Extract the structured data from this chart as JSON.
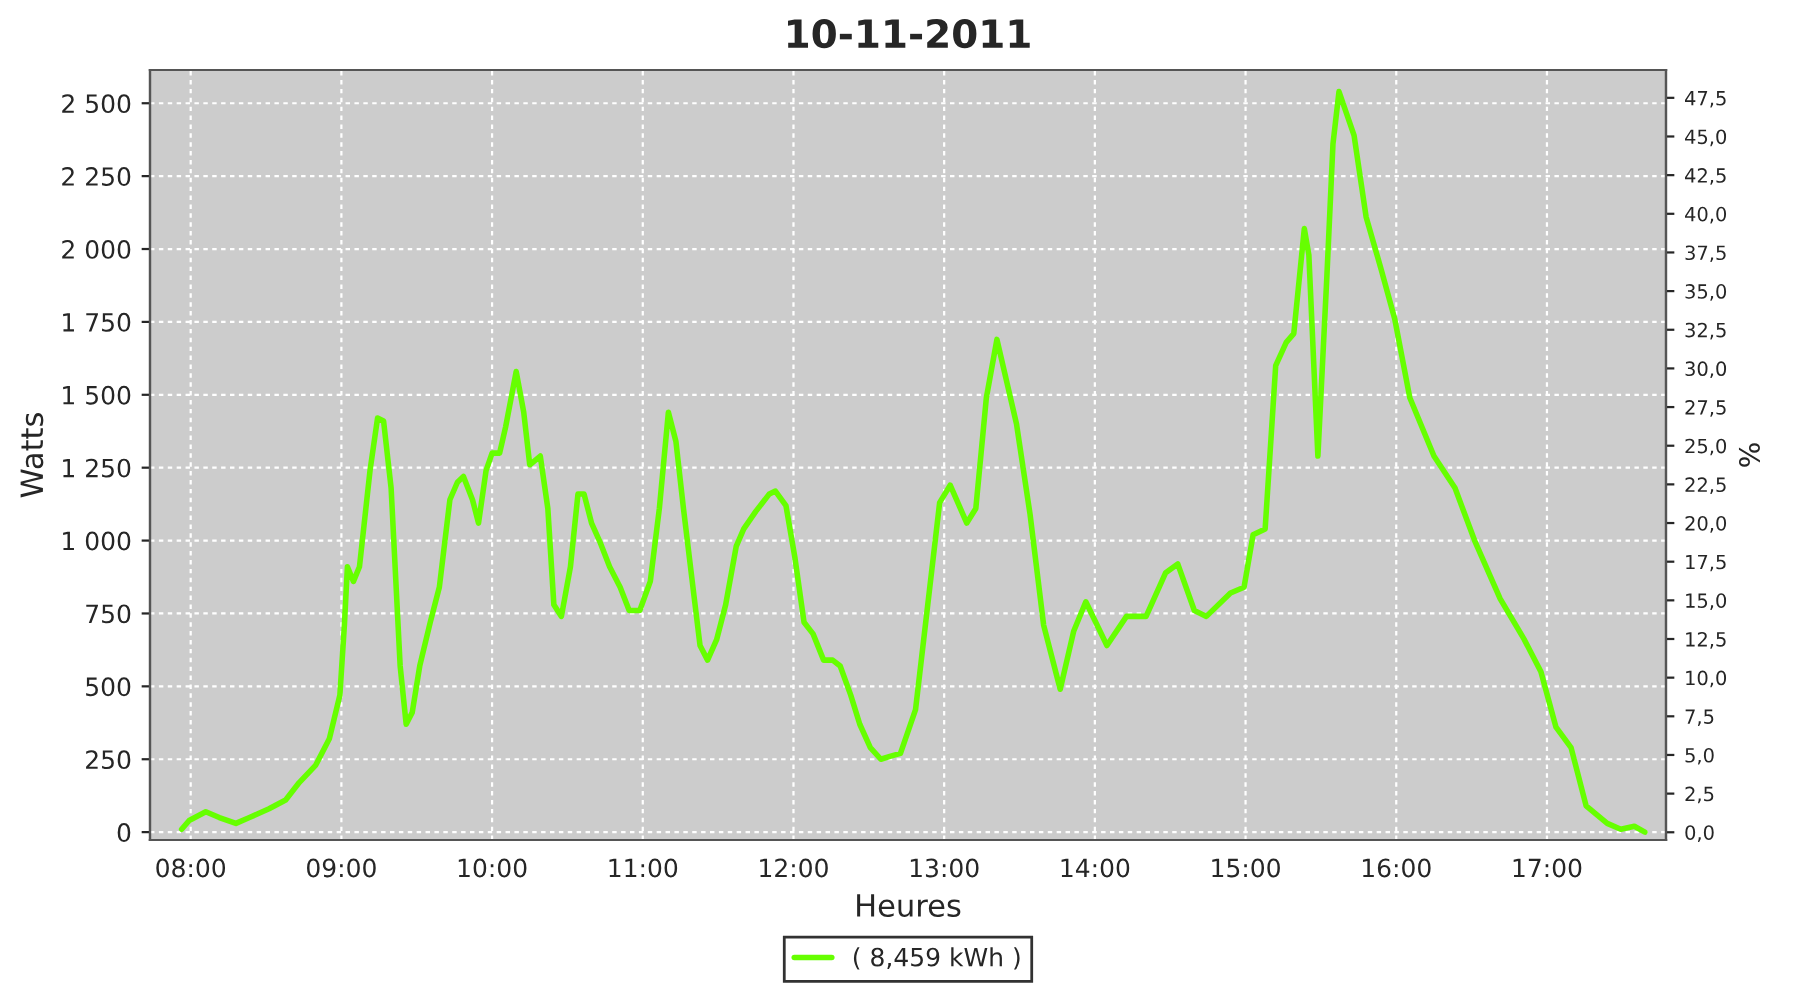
{
  "chart_data": {
    "type": "line",
    "title": "10-11-2011",
    "xlabel": "Heures",
    "ylabel": "Watts",
    "y2label": "%",
    "x": [
      7.94,
      7.99,
      8.1,
      8.19,
      8.3,
      8.39,
      8.52,
      8.63,
      8.72,
      8.83,
      8.92,
      8.99,
      9.02,
      9.04,
      9.08,
      9.12,
      9.19,
      9.24,
      9.28,
      9.33,
      9.39,
      9.43,
      9.47,
      9.52,
      9.59,
      9.65,
      9.72,
      9.77,
      9.81,
      9.87,
      9.91,
      9.96,
      10.0,
      10.05,
      10.09,
      10.16,
      10.21,
      10.25,
      10.32,
      10.37,
      10.41,
      10.46,
      10.52,
      10.57,
      10.61,
      10.66,
      10.72,
      10.78,
      10.85,
      10.91,
      10.98,
      11.05,
      11.11,
      11.17,
      11.22,
      11.27,
      11.34,
      11.38,
      11.43,
      11.49,
      11.55,
      11.62,
      11.67,
      11.75,
      11.84,
      11.88,
      11.95,
      12.01,
      12.07,
      12.13,
      12.2,
      12.26,
      12.31,
      12.38,
      12.44,
      12.51,
      12.58,
      12.64,
      12.71,
      12.81,
      12.97,
      13.04,
      13.15,
      13.21,
      13.28,
      13.35,
      13.48,
      13.57,
      13.66,
      13.77,
      13.86,
      13.94,
      14.08,
      14.21,
      14.34,
      14.47,
      14.55,
      14.66,
      14.74,
      14.9,
      14.99,
      15.05,
      15.13,
      15.2,
      15.27,
      15.32,
      15.39,
      15.42,
      15.48,
      15.54,
      15.58,
      15.62,
      15.72,
      15.8,
      15.9,
      15.99,
      16.09,
      16.25,
      16.39,
      16.52,
      16.69,
      16.85,
      16.96,
      17.06,
      17.16,
      17.26,
      17.4,
      17.49,
      17.58,
      17.65
    ],
    "series": [
      {
        "name": "( 8,459 kWh )",
        "color": "#66ff00",
        "values": [
          10,
          40,
          70,
          50,
          30,
          50,
          80,
          110,
          170,
          230,
          320,
          470,
          710,
          910,
          860,
          910,
          1240,
          1420,
          1410,
          1180,
          570,
          370,
          410,
          570,
          720,
          840,
          1140,
          1200,
          1220,
          1140,
          1060,
          1240,
          1300,
          1300,
          1390,
          1580,
          1440,
          1260,
          1290,
          1110,
          780,
          740,
          910,
          1160,
          1160,
          1060,
          990,
          910,
          840,
          760,
          760,
          860,
          1110,
          1440,
          1340,
          1110,
          810,
          640,
          590,
          660,
          780,
          980,
          1040,
          1100,
          1160,
          1170,
          1120,
          940,
          720,
          680,
          590,
          590,
          570,
          470,
          370,
          290,
          250,
          260,
          270,
          420,
          1130,
          1190,
          1060,
          1110,
          1490,
          1690,
          1400,
          1090,
          710,
          490,
          690,
          790,
          640,
          740,
          740,
          890,
          920,
          760,
          740,
          820,
          840,
          1020,
          1040,
          1600,
          1680,
          1710,
          2070,
          1980,
          1290,
          1910,
          2360,
          2540,
          2390,
          2110,
          1930,
          1760,
          1490,
          1290,
          1180,
          1000,
          800,
          660,
          550,
          360,
          290,
          90,
          30,
          10,
          20,
          0
        ]
      }
    ],
    "xlim": [
      7.73,
      17.79
    ],
    "xticks": [
      {
        "value": 8,
        "label": "08:00"
      },
      {
        "value": 9,
        "label": "09:00"
      },
      {
        "value": 10,
        "label": "10:00"
      },
      {
        "value": 11,
        "label": "11:00"
      },
      {
        "value": 12,
        "label": "12:00"
      },
      {
        "value": 13,
        "label": "13:00"
      },
      {
        "value": 14,
        "label": "14:00"
      },
      {
        "value": 15,
        "label": "15:00"
      },
      {
        "value": 16,
        "label": "16:00"
      },
      {
        "value": 17,
        "label": "17:00"
      }
    ],
    "ylim": [
      -27,
      2614
    ],
    "yticks": [
      0,
      250,
      500,
      750,
      {
        "value": 1000,
        "label": "1 000"
      },
      {
        "value": 1250,
        "label": "1 250"
      },
      {
        "value": 1500,
        "label": "1 500"
      },
      {
        "value": 1750,
        "label": "1 750"
      },
      {
        "value": 2000,
        "label": "2 000"
      },
      {
        "value": 2250,
        "label": "2 250"
      },
      {
        "value": 2500,
        "label": "2 500"
      }
    ],
    "y2lim": [
      -0.5,
      49.3
    ],
    "y2ticks": [
      {
        "value": 0,
        "label": "0,0"
      },
      {
        "value": 2.5,
        "label": "2,5"
      },
      {
        "value": 5,
        "label": "5,0"
      },
      {
        "value": 7.5,
        "label": "7,5"
      },
      {
        "value": 10,
        "label": "10,0"
      },
      {
        "value": 12.5,
        "label": "12,5"
      },
      {
        "value": 15,
        "label": "15,0"
      },
      {
        "value": 17.5,
        "label": "17,5"
      },
      {
        "value": 20,
        "label": "20,0"
      },
      {
        "value": 22.5,
        "label": "22,5"
      },
      {
        "value": 25,
        "label": "25,0"
      },
      {
        "value": 27.5,
        "label": "27,5"
      },
      {
        "value": 30,
        "label": "30,0"
      },
      {
        "value": 32.5,
        "label": "32,5"
      },
      {
        "value": 35,
        "label": "35,0"
      },
      {
        "value": 37.5,
        "label": "37,5"
      },
      {
        "value": 40,
        "label": "40,0"
      },
      {
        "value": 42.5,
        "label": "42,5"
      },
      {
        "value": 45,
        "label": "45,0"
      },
      {
        "value": 47.5,
        "label": "47,5"
      }
    ],
    "grid": true,
    "legend": "bottom",
    "marker": "none",
    "line_style": "solid"
  }
}
